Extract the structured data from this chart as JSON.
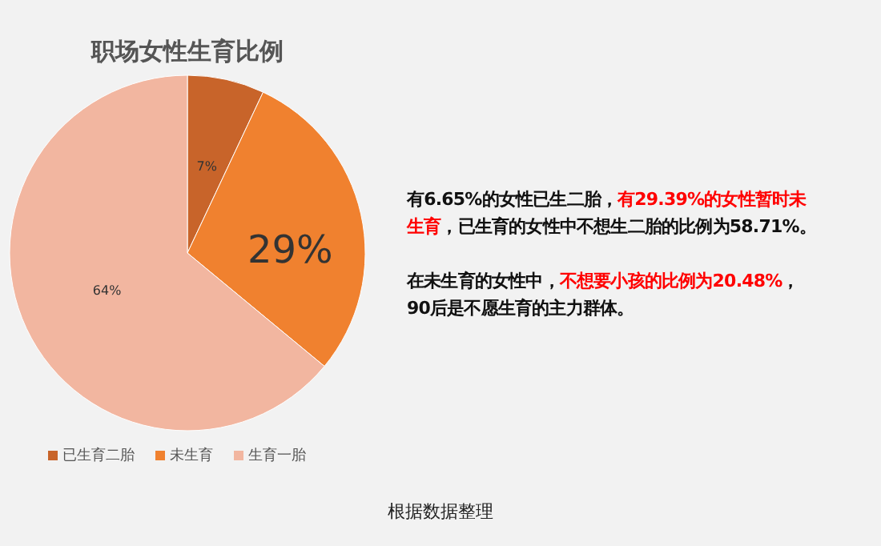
{
  "chart_data": {
    "type": "pie",
    "title": "职场女性生育比例",
    "categories": [
      "已生育二胎",
      "未生育",
      "生育一胎"
    ],
    "values": [
      7,
      29,
      64
    ],
    "colors": [
      "#c8642a",
      "#f0812f",
      "#f2b6a0"
    ],
    "value_labels": [
      "7%",
      "29%",
      "64%"
    ],
    "legend": "bottom",
    "annotations": [
      "有6.65%的女性已生二胎，",
      "有29.39%的女性暂时未",
      "生育",
      "，已生育的女性中不想生二胎的比例为58.71%。",
      "在未生育的女性中，",
      "不想要小孩的比例为20.48%",
      "，",
      "90后是不愿生育的主力群体。",
      "根据数据整理"
    ]
  }
}
